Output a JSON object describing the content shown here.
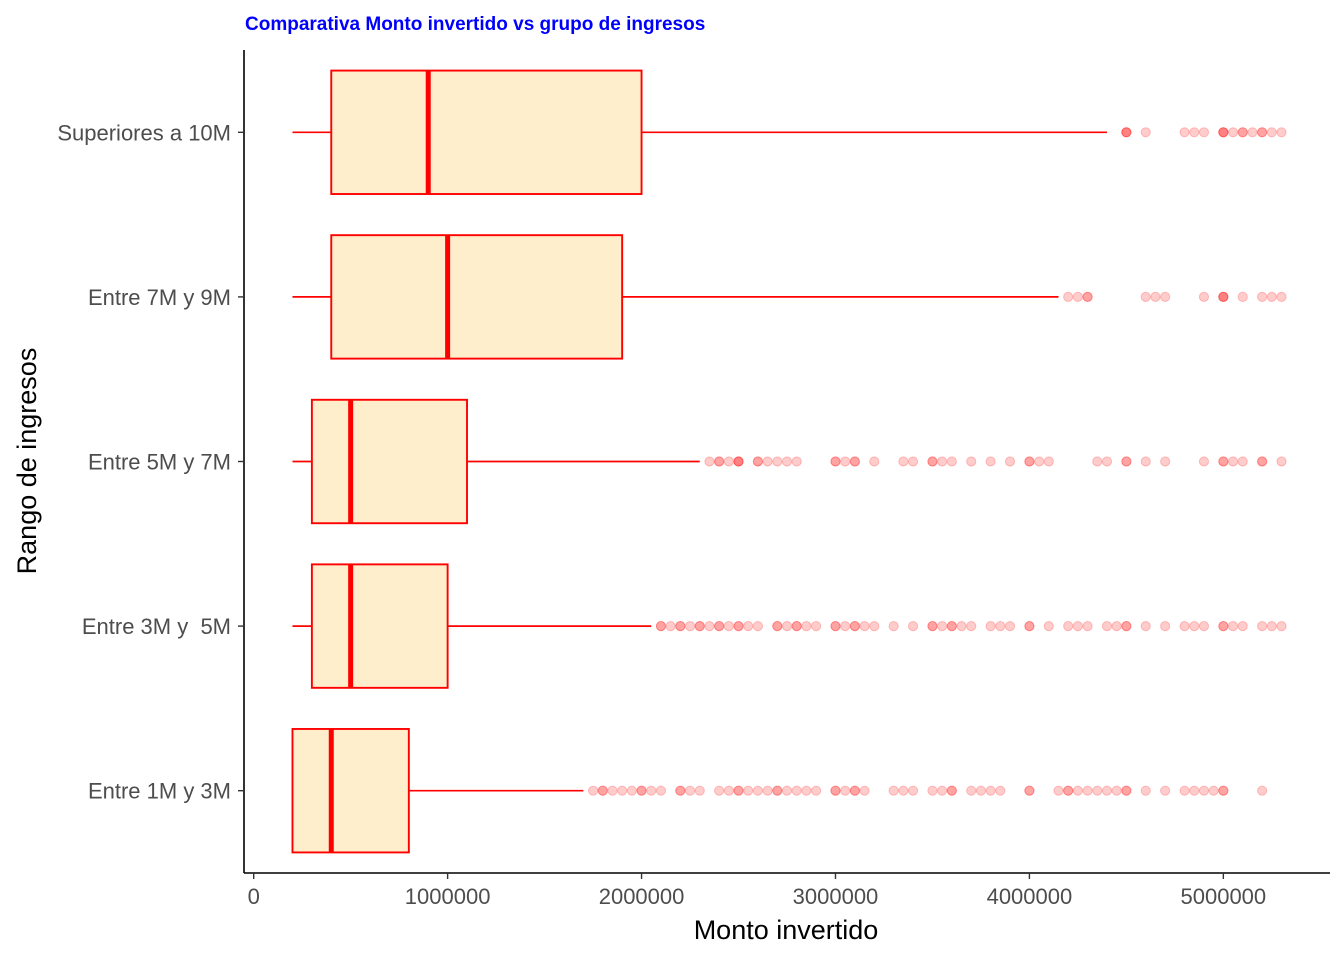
{
  "chart_data": {
    "type": "boxplot",
    "orientation": "horizontal",
    "title": "Comparativa Monto invertido vs grupo de ingresos",
    "xlabel": "Monto invertido",
    "ylabel": "Rango de ingresos",
    "xlim": [
      -50000,
      5550000
    ],
    "x_ticks": [
      0,
      1000000,
      2000000,
      3000000,
      4000000,
      5000000
    ],
    "x_tick_labels": [
      "0",
      "1000000",
      "2000000",
      "3000000",
      "4000000",
      "5000000"
    ],
    "grid": false,
    "legend": "none",
    "colors": {
      "title": "#0000ff",
      "box_fill": "#ffeecc",
      "box_stroke": "#ff0000",
      "median": "#ff0000",
      "outlier": "#ff0000",
      "axis": "#000000"
    },
    "categories": [
      "Superiores a 10M",
      "Entre 7M y 9M",
      "Entre 5M y 7M",
      "Entre 3M y  5M",
      "Entre 1M y 3M"
    ],
    "boxes": [
      {
        "category": "Superiores a 10M",
        "whisker_low": 200000,
        "q1": 400000,
        "median": 900000,
        "q3": 2000000,
        "whisker_high": 4400000,
        "outliers": [
          4500000,
          4500000,
          4500000,
          4600000,
          4800000,
          4850000,
          4900000,
          5000000,
          5000000,
          5000000,
          5050000,
          5100000,
          5100000,
          5150000,
          5200000,
          5200000,
          5250000,
          5300000
        ]
      },
      {
        "category": "Entre 7M y 9M",
        "whisker_low": 200000,
        "q1": 400000,
        "median": 1000000,
        "q3": 1900000,
        "whisker_high": 4150000,
        "outliers": [
          4200000,
          4250000,
          4300000,
          4300000,
          4600000,
          4650000,
          4700000,
          4900000,
          5000000,
          5000000,
          5000000,
          5100000,
          5200000,
          5250000,
          5300000
        ]
      },
      {
        "category": "Entre 5M y 7M",
        "whisker_low": 200000,
        "q1": 300000,
        "median": 500000,
        "q3": 1100000,
        "whisker_high": 2300000,
        "outliers": [
          2350000,
          2400000,
          2400000,
          2450000,
          2500000,
          2500000,
          2500000,
          2600000,
          2600000,
          2650000,
          2700000,
          2750000,
          2800000,
          3000000,
          3000000,
          3050000,
          3100000,
          3100000,
          3200000,
          3350000,
          3400000,
          3500000,
          3500000,
          3550000,
          3600000,
          3700000,
          3800000,
          3900000,
          4000000,
          4000000,
          4050000,
          4100000,
          4350000,
          4400000,
          4500000,
          4500000,
          4600000,
          4700000,
          4900000,
          5000000,
          5000000,
          5050000,
          5100000,
          5200000,
          5200000,
          5300000
        ]
      },
      {
        "category": "Entre 3M y  5M",
        "whisker_low": 200000,
        "q1": 300000,
        "median": 500000,
        "q3": 1000000,
        "whisker_high": 2050000,
        "outliers": [
          2100000,
          2100000,
          2150000,
          2200000,
          2200000,
          2250000,
          2300000,
          2300000,
          2350000,
          2400000,
          2400000,
          2450000,
          2500000,
          2500000,
          2550000,
          2600000,
          2700000,
          2700000,
          2750000,
          2800000,
          2800000,
          2850000,
          2900000,
          3000000,
          3000000,
          3050000,
          3100000,
          3100000,
          3150000,
          3200000,
          3300000,
          3400000,
          3500000,
          3500000,
          3550000,
          3600000,
          3600000,
          3650000,
          3700000,
          3800000,
          3850000,
          3900000,
          4000000,
          4000000,
          4100000,
          4200000,
          4250000,
          4300000,
          4400000,
          4450000,
          4500000,
          4500000,
          4600000,
          4700000,
          4800000,
          4850000,
          4900000,
          5000000,
          5000000,
          5050000,
          5100000,
          5200000,
          5250000,
          5300000
        ]
      },
      {
        "category": "Entre 1M y 3M",
        "whisker_low": 200000,
        "q1": 200000,
        "median": 400000,
        "q3": 800000,
        "whisker_high": 1700000,
        "outliers": [
          1750000,
          1800000,
          1800000,
          1850000,
          1900000,
          1950000,
          2000000,
          2000000,
          2050000,
          2100000,
          2200000,
          2200000,
          2250000,
          2300000,
          2400000,
          2450000,
          2500000,
          2500000,
          2550000,
          2600000,
          2650000,
          2700000,
          2700000,
          2750000,
          2800000,
          2850000,
          2900000,
          3000000,
          3000000,
          3050000,
          3100000,
          3100000,
          3150000,
          3300000,
          3350000,
          3400000,
          3500000,
          3550000,
          3600000,
          3600000,
          3700000,
          3750000,
          3800000,
          3850000,
          4000000,
          4000000,
          4150000,
          4200000,
          4200000,
          4250000,
          4300000,
          4350000,
          4400000,
          4450000,
          4500000,
          4500000,
          4600000,
          4700000,
          4800000,
          4850000,
          4900000,
          4950000,
          5000000,
          5000000,
          5200000
        ]
      }
    ]
  }
}
